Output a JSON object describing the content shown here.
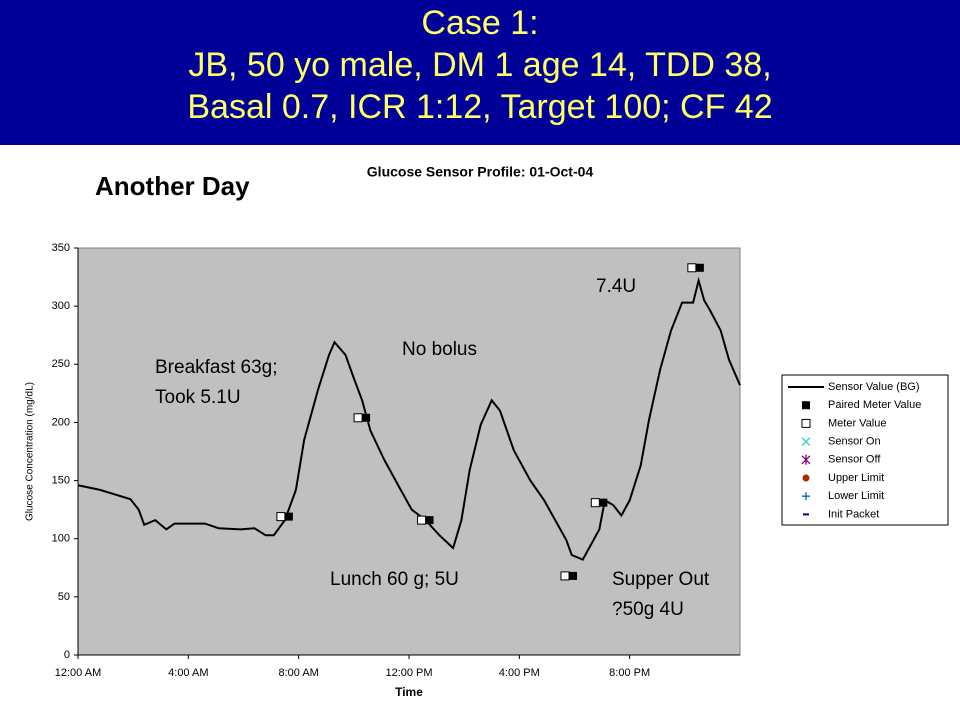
{
  "header": {
    "lines": [
      "Case 1:",
      "JB, 50 yo male, DM 1 age 14, TDD 38,",
      "Basal 0.7, ICR 1:12, Target 100; CF 42"
    ]
  },
  "subtitle": "Another Day",
  "chart_data": {
    "type": "line",
    "title": "Glucose Sensor Profile: 01-Oct-04",
    "xlabel": "Time",
    "ylabel": "Glucose Concentration (mg/dL)",
    "xlim": [
      0,
      24
    ],
    "xticks": [
      {
        "value": 0,
        "label": "12:00 AM"
      },
      {
        "value": 4,
        "label": "4:00 AM"
      },
      {
        "value": 8,
        "label": "8:00 AM"
      },
      {
        "value": 12,
        "label": "12:00 PM"
      },
      {
        "value": 16,
        "label": "4:00 PM"
      },
      {
        "value": 20,
        "label": "8:00 PM"
      }
    ],
    "ylim": [
      0,
      350
    ],
    "yticks": [
      0,
      50,
      100,
      150,
      200,
      250,
      300,
      350
    ],
    "plot_background": "#c0c0c0",
    "legend": "right",
    "series": [
      {
        "name": "Sensor Value (BG)",
        "color": "#000000",
        "marker": "line",
        "x": [
          0,
          0.8,
          1.9,
          2.2,
          2.4,
          2.8,
          3.2,
          3.5,
          4.6,
          5.1,
          5.9,
          6.4,
          6.8,
          7.1,
          7.5,
          7.9,
          8.2,
          8.7,
          9.1,
          9.3,
          9.7,
          10.0,
          10.3,
          10.6,
          11.1,
          11.7,
          12.1,
          12.6,
          13.1,
          13.6,
          13.9,
          14.2,
          14.6,
          15.0,
          15.3,
          15.8,
          16.4,
          16.9,
          17.3,
          17.7,
          17.9,
          18.3,
          18.6,
          18.9,
          19.1,
          19.4,
          19.7,
          20.0,
          20.4,
          20.7,
          21.1,
          21.5,
          21.9,
          22.3,
          22.5,
          22.7,
          22.9,
          23.3,
          23.6,
          24.0
        ],
        "values": [
          146,
          142,
          134,
          125,
          112,
          116,
          108,
          113,
          113,
          109,
          108,
          109,
          103,
          103,
          116,
          142,
          185,
          228,
          258,
          269,
          258,
          238,
          219,
          193,
          168,
          142,
          125,
          116,
          103,
          92,
          116,
          159,
          198,
          219,
          210,
          176,
          150,
          133,
          116,
          99,
          86,
          82,
          95,
          108,
          133,
          129,
          120,
          133,
          163,
          202,
          245,
          279,
          303,
          303,
          322,
          305,
          297,
          279,
          254,
          232
        ]
      },
      {
        "name": "Paired Meter Value",
        "color": "#000000",
        "marker": "filled-square",
        "x": [
          7.5,
          10.3,
          12.6,
          17.8,
          18.9,
          22.4
        ],
        "values": [
          119,
          204,
          116,
          68,
          131,
          333
        ]
      },
      {
        "name": "Meter Value",
        "color": "#000000",
        "marker": "open-square",
        "x": [
          7.5,
          10.3,
          12.6,
          17.8,
          18.9,
          22.4
        ],
        "values": [
          119,
          204,
          116,
          68,
          131,
          333
        ]
      },
      {
        "name": "Sensor On",
        "color": "#33cccc",
        "marker": "x",
        "x": [],
        "values": []
      },
      {
        "name": "Sensor Off",
        "color": "#800080",
        "marker": "asterisk",
        "x": [],
        "values": []
      },
      {
        "name": "Upper Limit",
        "color": "#993300",
        "marker": "circle",
        "x": [],
        "values": []
      },
      {
        "name": "Lower Limit",
        "color": "#0066cc",
        "marker": "plus",
        "x": [],
        "values": []
      },
      {
        "name": "Init Packet",
        "color": "#000080",
        "marker": "dash",
        "x": [],
        "values": []
      }
    ],
    "annotations": [
      [
        "Breakfast 63g;",
        "Took 5.1U"
      ],
      [
        "No bolus"
      ],
      [
        "Lunch 60 g; 5U"
      ],
      [
        "7.4U"
      ],
      [
        "Supper Out",
        "?50g 4U"
      ]
    ]
  }
}
